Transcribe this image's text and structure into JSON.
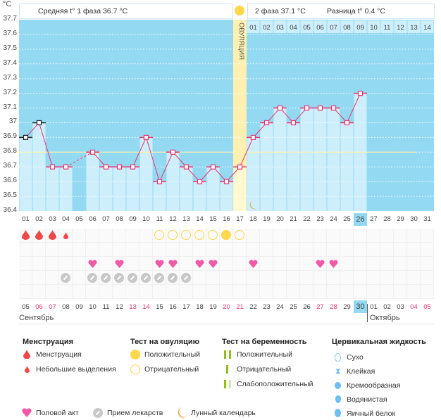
{
  "unit": "°C",
  "header": {
    "phase1": "Средняя t° 1 фаза 36.7 °C",
    "phase2": "2 фаза 37.1 °C",
    "difference": "Разница t° 0.4 °C",
    "ovulation_label": "ОВУЛЯЦИЯ"
  },
  "colors": {
    "background": "#94d9f2",
    "bar": "#cdeefb",
    "line": "#f0336e",
    "ovulation": "#fdf0b0",
    "coverline": "#fff3a0",
    "weekend": "#f0336e"
  },
  "chart_data": {
    "type": "bar+line",
    "ylim": [
      36.4,
      37.7
    ],
    "yticks": [
      "37.7",
      "37.6",
      "37.5",
      "37.4",
      "37.3",
      "37.2",
      "37.1",
      "37",
      "36.9",
      "36.8",
      "36.7",
      "36.6",
      "36.5",
      "36.4"
    ],
    "cycle_days": [
      "01",
      "02",
      "03",
      "04",
      "05",
      "06",
      "07",
      "08",
      "09",
      "10",
      "11",
      "12",
      "13",
      "14",
      "15",
      "16",
      "17",
      "18",
      "19",
      "20",
      "21",
      "22",
      "23",
      "24",
      "25",
      "26",
      "27",
      "28",
      "29",
      "30",
      "31"
    ],
    "temperatures": [
      36.9,
      37.0,
      36.7,
      36.7,
      null,
      36.8,
      36.7,
      36.7,
      36.7,
      36.9,
      36.6,
      36.8,
      36.7,
      36.6,
      36.7,
      36.6,
      36.7,
      36.9,
      37.0,
      37.1,
      37.0,
      37.1,
      37.1,
      37.1,
      37.0,
      37.2
    ],
    "coverline": 36.8,
    "ovulation_day": 17,
    "current_day": 26,
    "post_ovulation_days": [
      "01",
      "02",
      "03",
      "04",
      "05",
      "06",
      "07",
      "08",
      "09",
      "10",
      "11",
      "12",
      "13",
      "14"
    ]
  },
  "events": {
    "menstruation": [
      1,
      2,
      3
    ],
    "spotting": [
      4
    ],
    "ovulation_test_negative": [
      11,
      12,
      13,
      14,
      15,
      17
    ],
    "ovulation_test_positive": [
      16
    ],
    "intercourse": [
      6,
      8,
      11,
      12,
      14,
      15,
      18,
      23,
      24
    ],
    "medication": [
      4,
      6,
      7,
      8,
      9,
      10,
      11,
      12,
      13
    ],
    "moon": [
      18
    ]
  },
  "dates": [
    "05",
    "06",
    "07",
    "08",
    "09",
    "10",
    "11",
    "12",
    "13",
    "14",
    "15",
    "16",
    "17",
    "18",
    "19",
    "20",
    "21",
    "22",
    "23",
    "24",
    "25",
    "26",
    "27",
    "28",
    "29",
    "30",
    "01",
    "02",
    "03",
    "04",
    "05"
  ],
  "weekend_dates_idx": [
    1,
    2,
    8,
    9,
    15,
    16,
    22,
    23,
    29,
    30
  ],
  "today_date_idx": 25,
  "months": {
    "first": "Сентябрь",
    "second": "Октябрь"
  },
  "legend": {
    "menstruation": {
      "title": "Менструация",
      "items": [
        "Менструация",
        "Небольшие выделения"
      ]
    },
    "ovulation_test": {
      "title": "Тест на овуляцию",
      "items": [
        "Положительный",
        "Отрицательный"
      ]
    },
    "pregnancy_test": {
      "title": "Тест на беременность",
      "items": [
        "Положительный",
        "Отрицательный",
        "Слабоположительный"
      ]
    },
    "cervical": {
      "title": "Цервикальная жидкость",
      "items": [
        "Сухо",
        "Клейкая",
        "Кремообразная",
        "Водянистая",
        "Яичный белок"
      ]
    },
    "bottom": [
      "Половой акт",
      "Прием лекарств",
      "Лунный календарь"
    ]
  }
}
